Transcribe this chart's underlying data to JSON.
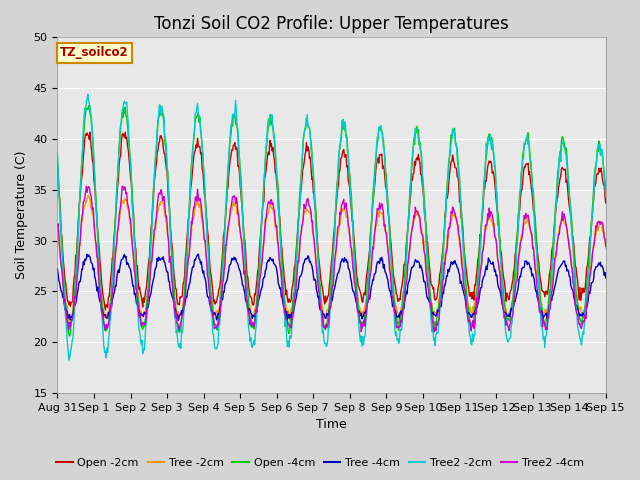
{
  "title": "Tonzi Soil CO2 Profile: Upper Temperatures",
  "xlabel": "Time",
  "ylabel": "Soil Temperature (C)",
  "ylim": [
    15,
    50
  ],
  "n_days": 15,
  "background_color": "#d4d4d4",
  "plot_bg_color": "#e8e8e8",
  "series": [
    {
      "label": "Open -2cm",
      "color": "#cc0000"
    },
    {
      "label": "Tree -2cm",
      "color": "#ff9900"
    },
    {
      "label": "Open -4cm",
      "color": "#00cc00"
    },
    {
      "label": "Tree -4cm",
      "color": "#0000bb"
    },
    {
      "label": "Tree2 -2cm",
      "color": "#00cccc"
    },
    {
      "label": "Tree2 -4cm",
      "color": "#cc00cc"
    }
  ],
  "title_fontsize": 12,
  "label_fontsize": 9,
  "tick_fontsize": 8,
  "legend_fontsize": 8,
  "watermark": "TZ_soilco2",
  "xtick_labels": [
    "Aug 31",
    "Sep 1",
    "Sep 2",
    "Sep 3",
    "Sep 4",
    "Sep 5",
    "Sep 6",
    "Sep 7",
    "Sep 8",
    "Sep 9",
    "Sep 10",
    "Sep 11",
    "Sep 12",
    "Sep 13",
    "Sep 14",
    "Sep 15"
  ]
}
